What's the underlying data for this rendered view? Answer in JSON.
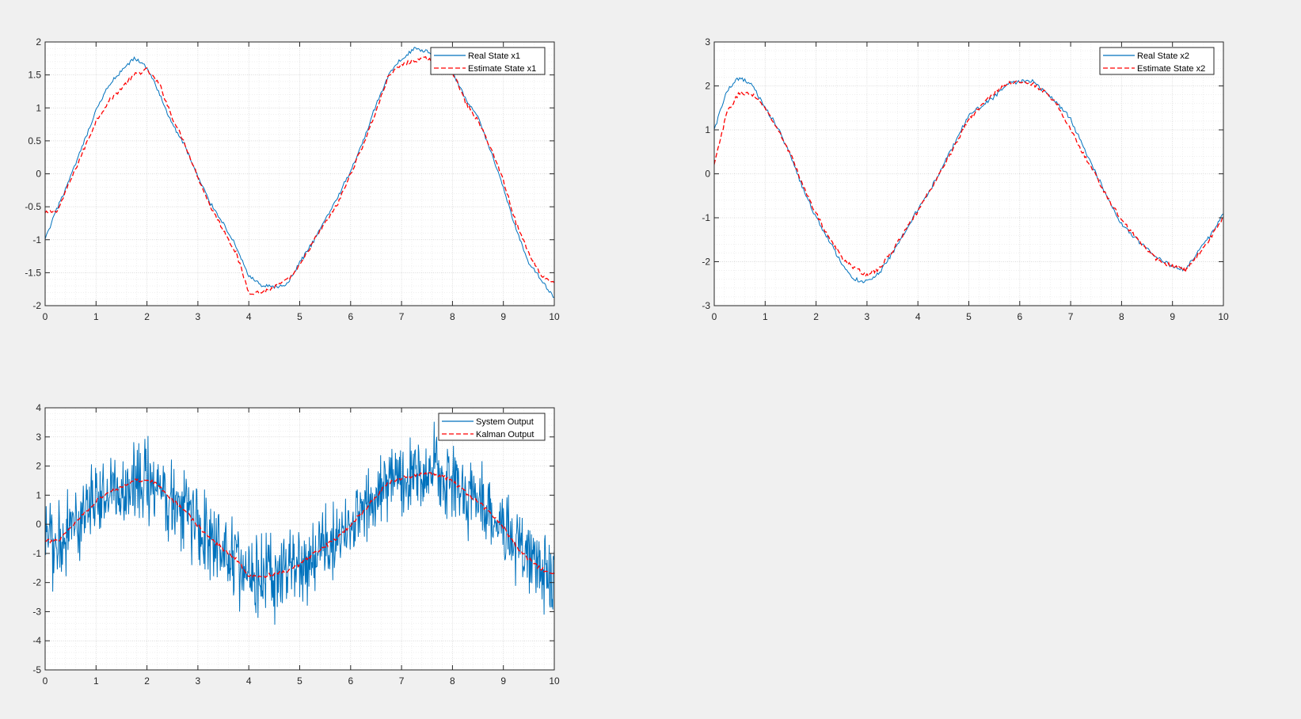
{
  "figure": {
    "background": "#f0f0f0"
  },
  "chart_data": [
    {
      "type": "line",
      "xlim": [
        0,
        10
      ],
      "ylim": [
        -2,
        2
      ],
      "xticks": [
        0,
        1,
        2,
        3,
        4,
        5,
        6,
        7,
        8,
        9,
        10
      ],
      "yticks": [
        -2,
        -1.5,
        -1,
        -0.5,
        0,
        0.5,
        1,
        1.5,
        2
      ],
      "grid": true,
      "minor_grid": true,
      "legend_position": "top-right",
      "legend_entries": [
        "Real State x1",
        "Estimate State x1"
      ],
      "series": [
        {
          "name": "Real State x1",
          "color": "#0072bd",
          "style": "solid",
          "x": [
            0,
            0.25,
            0.5,
            0.75,
            1,
            1.25,
            1.5,
            1.75,
            2,
            2.25,
            2.5,
            2.75,
            3,
            3.25,
            3.5,
            3.75,
            4,
            4.25,
            4.5,
            4.75,
            5,
            5.25,
            5.5,
            5.75,
            6,
            6.25,
            6.5,
            6.75,
            7,
            7.25,
            7.5,
            7.75,
            8,
            8.25,
            8.5,
            8.75,
            9,
            9.25,
            9.5,
            9.75,
            10
          ],
          "y": [
            -1.0,
            -0.5,
            -0.05,
            0.45,
            0.95,
            1.35,
            1.55,
            1.75,
            1.62,
            1.2,
            0.75,
            0.42,
            -0.05,
            -0.45,
            -0.75,
            -1.1,
            -1.55,
            -1.7,
            -1.72,
            -1.68,
            -1.35,
            -1.05,
            -0.7,
            -0.35,
            0.05,
            0.5,
            1.05,
            1.5,
            1.75,
            1.9,
            1.85,
            1.82,
            1.55,
            1.15,
            0.85,
            0.35,
            -0.2,
            -0.85,
            -1.35,
            -1.6,
            -1.9
          ]
        },
        {
          "name": "Estimate State x1",
          "color": "#ff0000",
          "style": "dashed",
          "x": [
            0,
            0.25,
            0.5,
            0.75,
            1,
            1.25,
            1.5,
            1.75,
            2,
            2.25,
            2.5,
            2.75,
            3,
            3.25,
            3.5,
            3.75,
            4,
            4.25,
            4.5,
            4.75,
            5,
            5.25,
            5.5,
            5.75,
            6,
            6.25,
            6.5,
            6.75,
            7,
            7.25,
            7.5,
            7.75,
            8,
            8.25,
            8.5,
            8.75,
            9,
            9.25,
            9.5,
            9.75,
            10
          ],
          "y": [
            -0.6,
            -0.55,
            -0.1,
            0.35,
            0.8,
            1.1,
            1.3,
            1.5,
            1.58,
            1.35,
            0.85,
            0.45,
            -0.05,
            -0.5,
            -0.85,
            -1.2,
            -1.8,
            -1.8,
            -1.72,
            -1.62,
            -1.4,
            -1.05,
            -0.75,
            -0.45,
            0.0,
            0.45,
            0.95,
            1.5,
            1.65,
            1.72,
            1.75,
            1.7,
            1.55,
            1.1,
            0.8,
            0.4,
            -0.1,
            -0.75,
            -1.2,
            -1.55,
            -1.65
          ]
        }
      ]
    },
    {
      "type": "line",
      "xlim": [
        0,
        10
      ],
      "ylim": [
        -3,
        3
      ],
      "xticks": [
        0,
        1,
        2,
        3,
        4,
        5,
        6,
        7,
        8,
        9,
        10
      ],
      "yticks": [
        -3,
        -2,
        -1,
        0,
        1,
        2,
        3
      ],
      "grid": true,
      "minor_grid": true,
      "legend_position": "top-right",
      "legend_entries": [
        "Real State x2",
        "Estimate State x2"
      ],
      "series": [
        {
          "name": "Real State x2",
          "color": "#0072bd",
          "style": "solid",
          "x": [
            0,
            0.25,
            0.5,
            0.75,
            1,
            1.25,
            1.5,
            1.75,
            2,
            2.25,
            2.5,
            2.75,
            3,
            3.25,
            3.5,
            3.75,
            4,
            4.25,
            4.5,
            4.75,
            5,
            5.25,
            5.5,
            5.75,
            6,
            6.25,
            6.5,
            6.75,
            7,
            7.25,
            7.5,
            7.75,
            8,
            8.25,
            8.5,
            8.75,
            9,
            9.25,
            9.5,
            9.75,
            10
          ],
          "y": [
            1.0,
            1.9,
            2.2,
            2.0,
            1.5,
            1.05,
            0.4,
            -0.35,
            -1.0,
            -1.5,
            -2.05,
            -2.4,
            -2.45,
            -2.25,
            -1.8,
            -1.3,
            -0.8,
            -0.35,
            0.2,
            0.75,
            1.35,
            1.55,
            1.75,
            2.05,
            2.1,
            2.1,
            1.85,
            1.6,
            1.25,
            0.6,
            0.0,
            -0.6,
            -1.15,
            -1.45,
            -1.7,
            -1.95,
            -2.1,
            -2.2,
            -1.75,
            -1.4,
            -0.9
          ]
        },
        {
          "name": "Estimate State x2",
          "color": "#ff0000",
          "style": "dashed",
          "x": [
            0,
            0.25,
            0.5,
            0.75,
            1,
            1.25,
            1.5,
            1.75,
            2,
            2.25,
            2.5,
            2.75,
            3,
            3.25,
            3.5,
            3.75,
            4,
            4.25,
            4.5,
            4.75,
            5,
            5.25,
            5.5,
            5.75,
            6,
            6.25,
            6.5,
            6.75,
            7,
            7.25,
            7.5,
            7.75,
            8,
            8.25,
            8.5,
            8.75,
            9,
            9.25,
            9.5,
            9.75,
            10
          ],
          "y": [
            0.2,
            1.4,
            1.85,
            1.8,
            1.5,
            1.0,
            0.45,
            -0.3,
            -0.9,
            -1.45,
            -1.9,
            -2.15,
            -2.3,
            -2.15,
            -1.75,
            -1.3,
            -0.85,
            -0.35,
            0.15,
            0.7,
            1.25,
            1.55,
            1.85,
            2.05,
            2.1,
            2.05,
            1.85,
            1.55,
            1.0,
            0.45,
            -0.05,
            -0.6,
            -1.05,
            -1.4,
            -1.75,
            -2.0,
            -2.1,
            -2.2,
            -1.85,
            -1.45,
            -1.0
          ]
        }
      ]
    },
    {
      "type": "line",
      "xlim": [
        0,
        10
      ],
      "ylim": [
        -5,
        4
      ],
      "xticks": [
        0,
        1,
        2,
        3,
        4,
        5,
        6,
        7,
        8,
        9,
        10
      ],
      "yticks": [
        -5,
        -4,
        -3,
        -2,
        -1,
        0,
        1,
        2,
        3,
        4
      ],
      "grid": true,
      "minor_grid": true,
      "legend_position": "top-right",
      "legend_entries": [
        "System Output",
        "Kalman Output"
      ],
      "series": [
        {
          "name": "System Output",
          "color": "#0072bd",
          "style": "solid",
          "noise_amplitude": 1.2,
          "x": [
            0,
            0.25,
            0.5,
            0.75,
            1,
            1.25,
            1.5,
            1.75,
            2,
            2.25,
            2.5,
            2.75,
            3,
            3.25,
            3.5,
            3.75,
            4,
            4.25,
            4.5,
            4.75,
            5,
            5.25,
            5.5,
            5.75,
            6,
            6.25,
            6.5,
            6.75,
            7,
            7.25,
            7.5,
            7.75,
            8,
            8.25,
            8.5,
            8.75,
            9,
            9.25,
            9.5,
            9.75,
            10
          ],
          "y": [
            -0.6,
            -0.5,
            -0.1,
            0.35,
            0.8,
            1.1,
            1.3,
            1.5,
            1.55,
            1.3,
            0.85,
            0.45,
            -0.05,
            -0.5,
            -0.85,
            -1.2,
            -1.7,
            -1.8,
            -1.75,
            -1.65,
            -1.4,
            -1.05,
            -0.75,
            -0.45,
            0.0,
            0.45,
            0.95,
            1.45,
            1.6,
            1.7,
            1.75,
            1.7,
            1.5,
            1.1,
            0.75,
            0.35,
            -0.1,
            -0.75,
            -1.2,
            -1.55,
            -1.7
          ]
        },
        {
          "name": "Kalman Output",
          "color": "#ff0000",
          "style": "dashed",
          "x": [
            0,
            0.25,
            0.5,
            0.75,
            1,
            1.25,
            1.5,
            1.75,
            2,
            2.25,
            2.5,
            2.75,
            3,
            3.25,
            3.5,
            3.75,
            4,
            4.25,
            4.5,
            4.75,
            5,
            5.25,
            5.5,
            5.75,
            6,
            6.25,
            6.5,
            6.75,
            7,
            7.25,
            7.5,
            7.75,
            8,
            8.25,
            8.5,
            8.75,
            9,
            9.25,
            9.5,
            9.75,
            10
          ],
          "y": [
            -0.6,
            -0.55,
            -0.1,
            0.35,
            0.8,
            1.1,
            1.3,
            1.5,
            1.55,
            1.3,
            0.85,
            0.45,
            -0.05,
            -0.5,
            -0.85,
            -1.2,
            -1.75,
            -1.8,
            -1.72,
            -1.62,
            -1.4,
            -1.05,
            -0.75,
            -0.45,
            0.0,
            0.45,
            0.95,
            1.45,
            1.6,
            1.68,
            1.72,
            1.68,
            1.5,
            1.1,
            0.78,
            0.38,
            -0.1,
            -0.75,
            -1.2,
            -1.55,
            -1.65
          ]
        }
      ]
    }
  ]
}
